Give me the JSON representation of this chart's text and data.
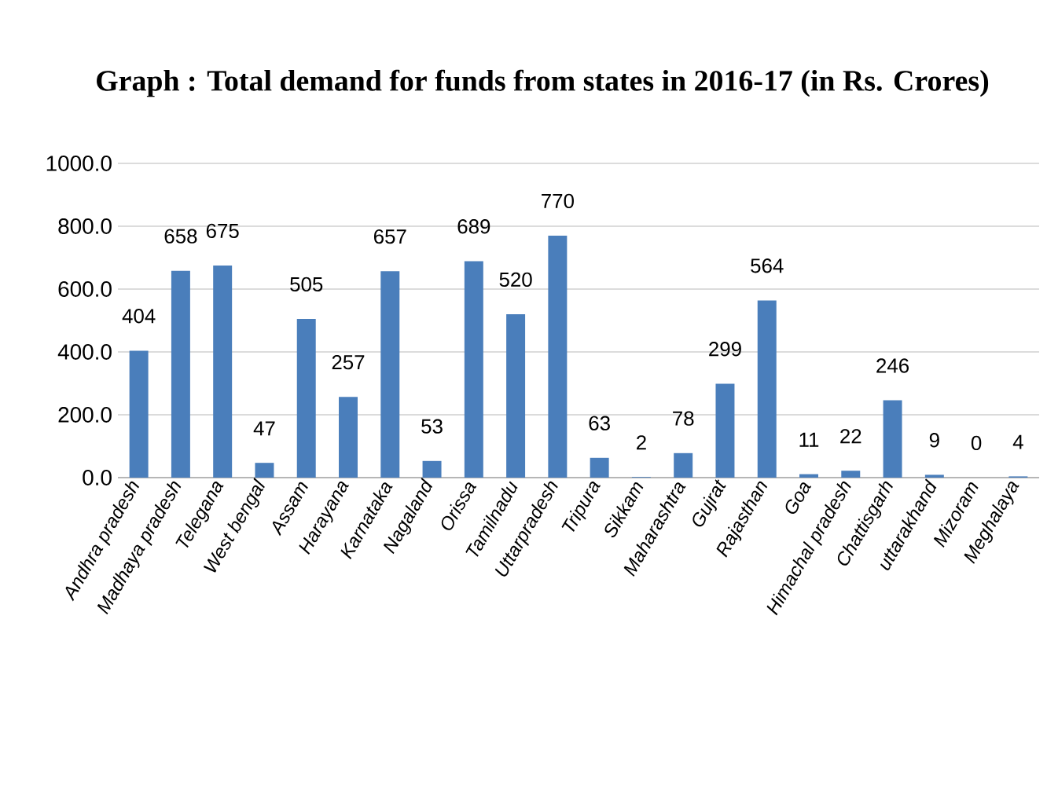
{
  "chart_data": {
    "type": "bar",
    "title": "Graph : Total demand for funds from states in 2016-17 (in Rs. Crores)",
    "categories": [
      "Andhra pradesh",
      "Madhaya pradesh",
      "Telegana",
      "West bengal",
      "Assam",
      "Harayana",
      "Karnataka",
      "Nagaland",
      "Orissa",
      "Tamilnadu",
      "Uttarpradesh",
      "Tripura",
      "Sikkam",
      "Maharashtra",
      "Gujrat",
      "Rajasthan",
      "Goa",
      "Himachal pradesh",
      "Chattisgarh",
      "uttarakhand",
      "Mizoram",
      "Meghalaya"
    ],
    "values": [
      404,
      658,
      675,
      47,
      505,
      257,
      657,
      53,
      689,
      520,
      770,
      63,
      2,
      78,
      299,
      564,
      11,
      22,
      246,
      9,
      0,
      4
    ],
    "color": "#4a7ebb",
    "ylim": [
      0,
      1000
    ],
    "yticks": [
      {
        "value": 0,
        "label": "0.0"
      },
      {
        "value": 200,
        "label": "200.0"
      },
      {
        "value": 400,
        "label": "400.0"
      },
      {
        "value": 600,
        "label": "600.0"
      },
      {
        "value": 800,
        "label": "800.0"
      },
      {
        "value": 1000,
        "label": "1000.0"
      }
    ],
    "grid": "y",
    "data_labels": true
  }
}
